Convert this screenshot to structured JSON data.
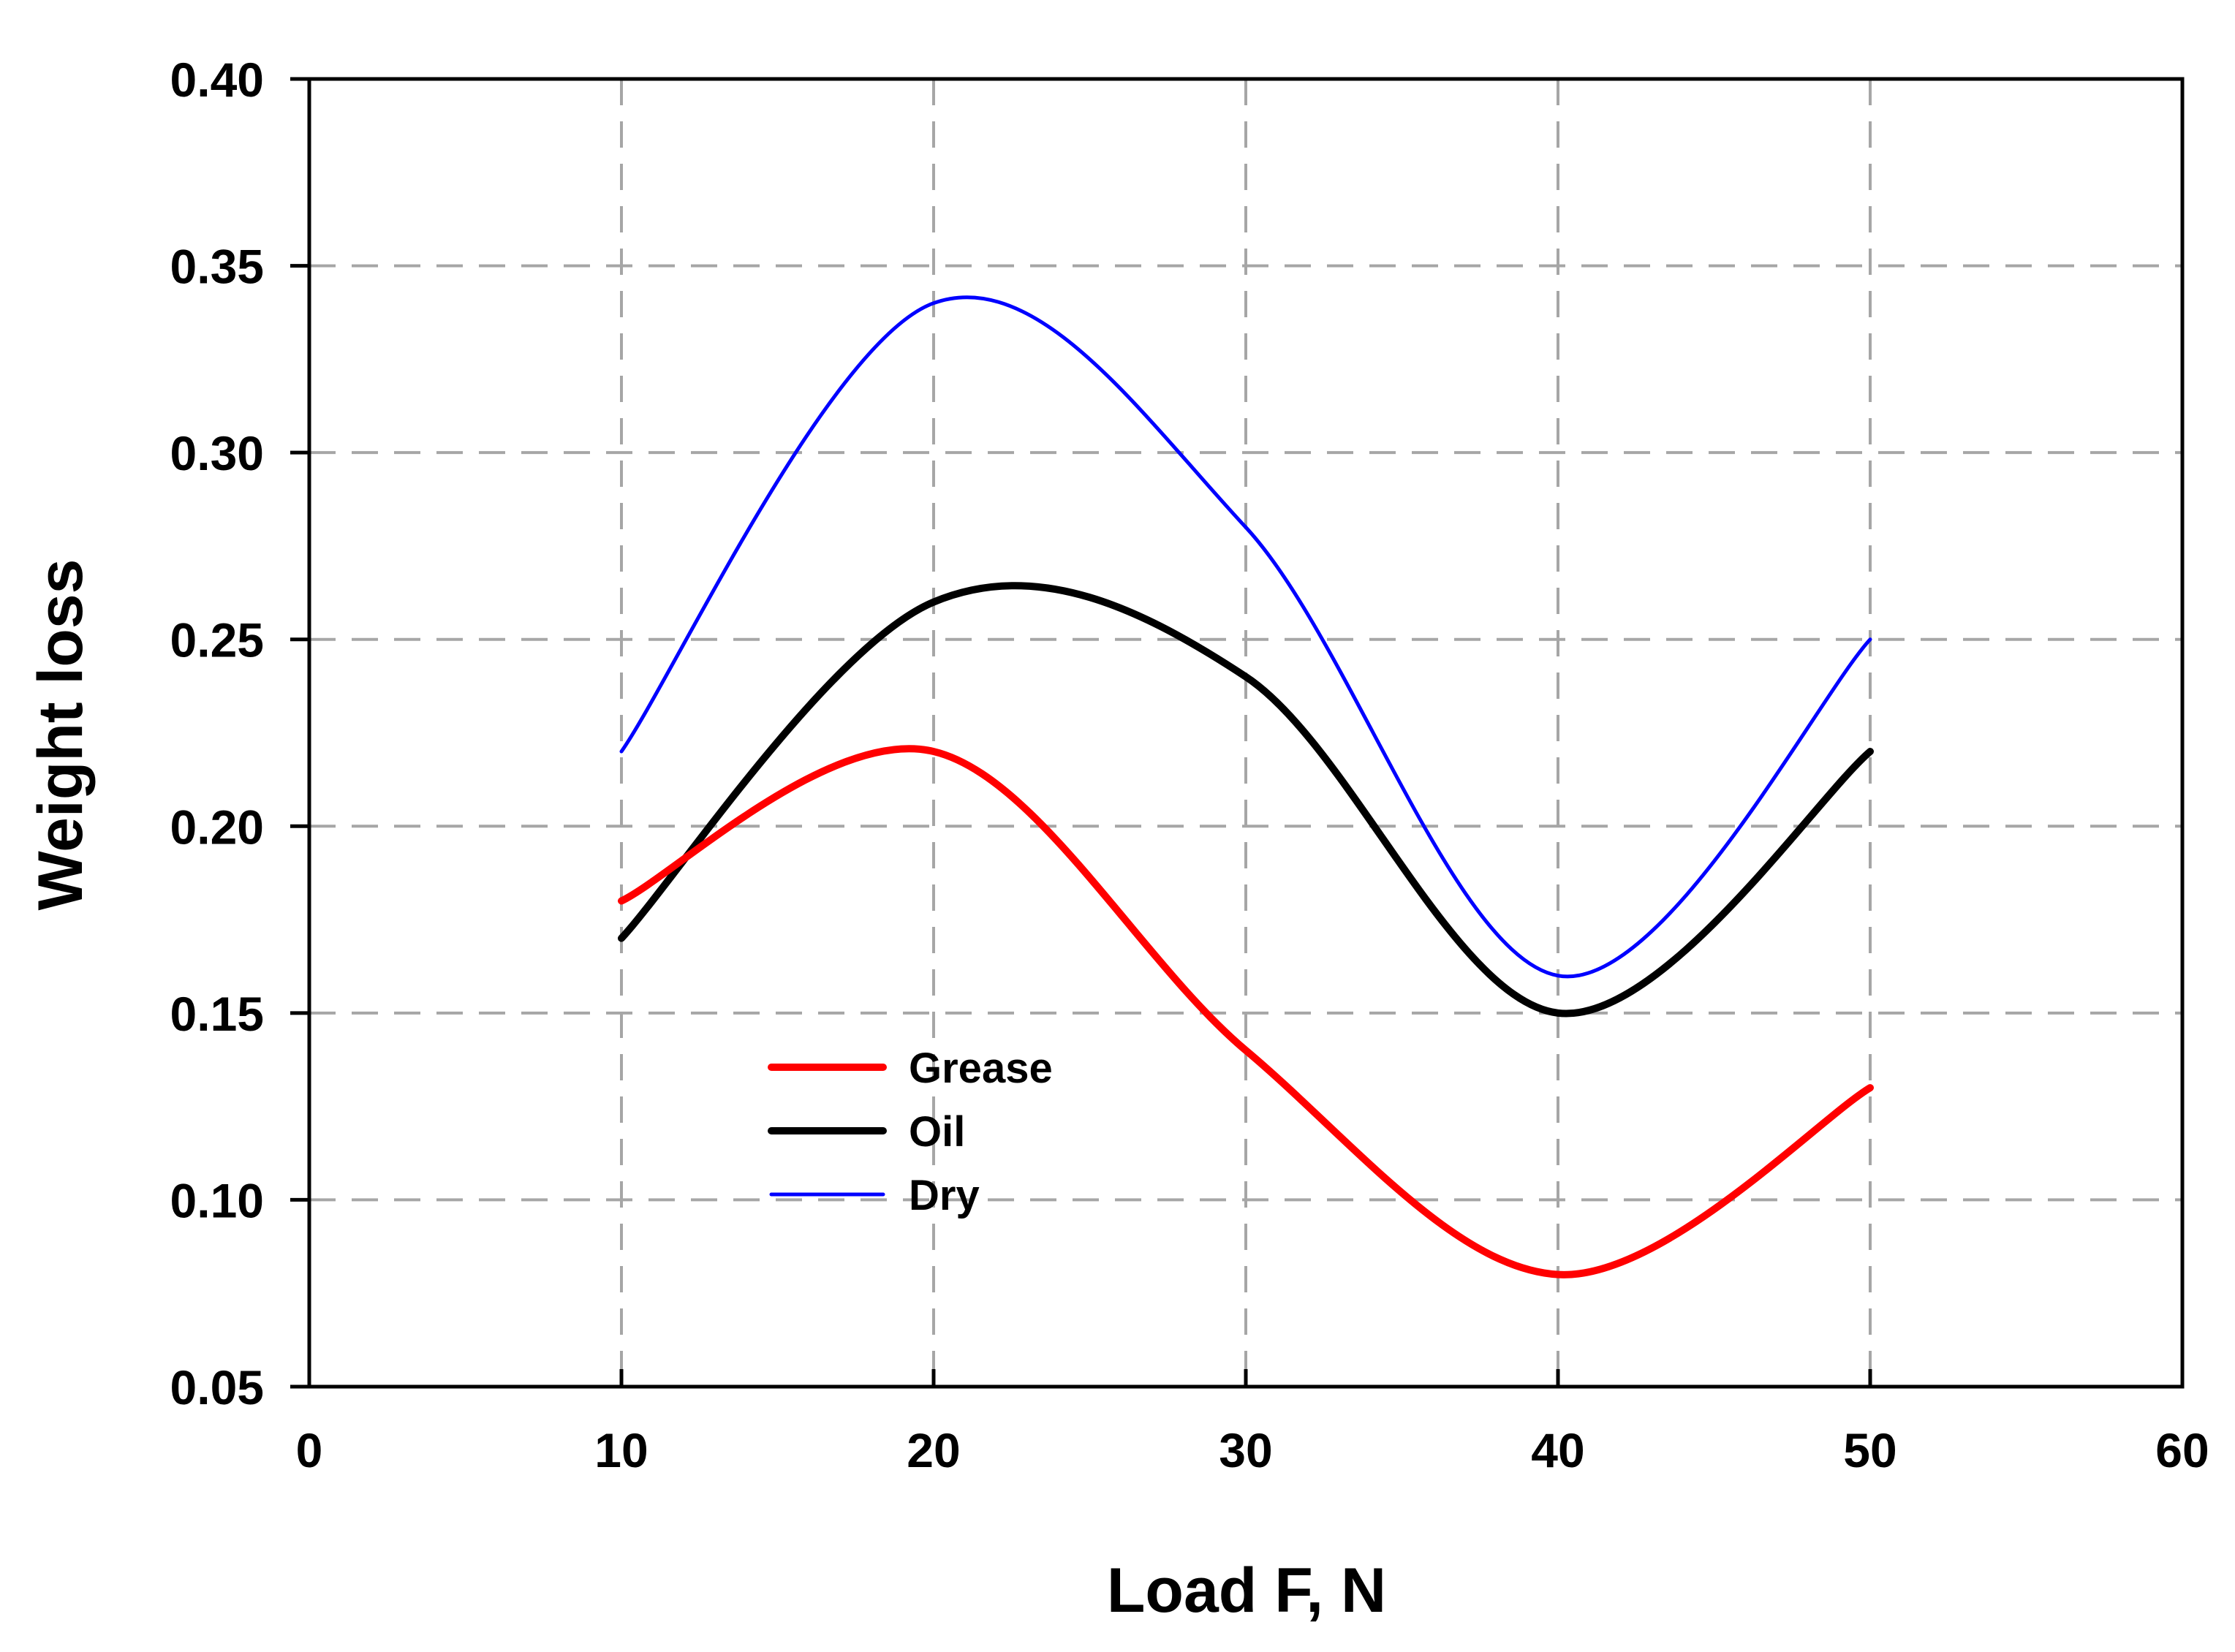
{
  "chart_data": {
    "type": "line",
    "title": "",
    "xlabel": "Load F, N",
    "ylabel": "Weight loss",
    "xlim": [
      0,
      60
    ],
    "ylim": [
      0.05,
      0.4
    ],
    "xticks": [
      0,
      10,
      20,
      30,
      40,
      50,
      60
    ],
    "xtick_labels": [
      "0",
      "10",
      "20",
      "30",
      "40",
      "50",
      "60"
    ],
    "yticks": [
      0.05,
      0.1,
      0.15,
      0.2,
      0.25,
      0.3,
      0.35,
      0.4
    ],
    "ytick_labels": [
      "0.05",
      "0.10",
      "0.15",
      "0.20",
      "0.25",
      "0.30",
      "0.35",
      "0.40"
    ],
    "grid": true,
    "legend_position": "lower-center",
    "x": [
      10,
      20,
      30,
      40,
      50
    ],
    "series": [
      {
        "name": "Grease",
        "values": [
          0.18,
          0.22,
          0.14,
          0.08,
          0.13
        ],
        "color": "#ff0000",
        "width": "thick"
      },
      {
        "name": "Oil",
        "values": [
          0.17,
          0.26,
          0.24,
          0.15,
          0.22
        ],
        "color": "#000000",
        "width": "thick"
      },
      {
        "name": "Dry",
        "values": [
          0.22,
          0.34,
          0.28,
          0.16,
          0.25
        ],
        "color": "#0000ff",
        "width": "thin"
      }
    ]
  }
}
